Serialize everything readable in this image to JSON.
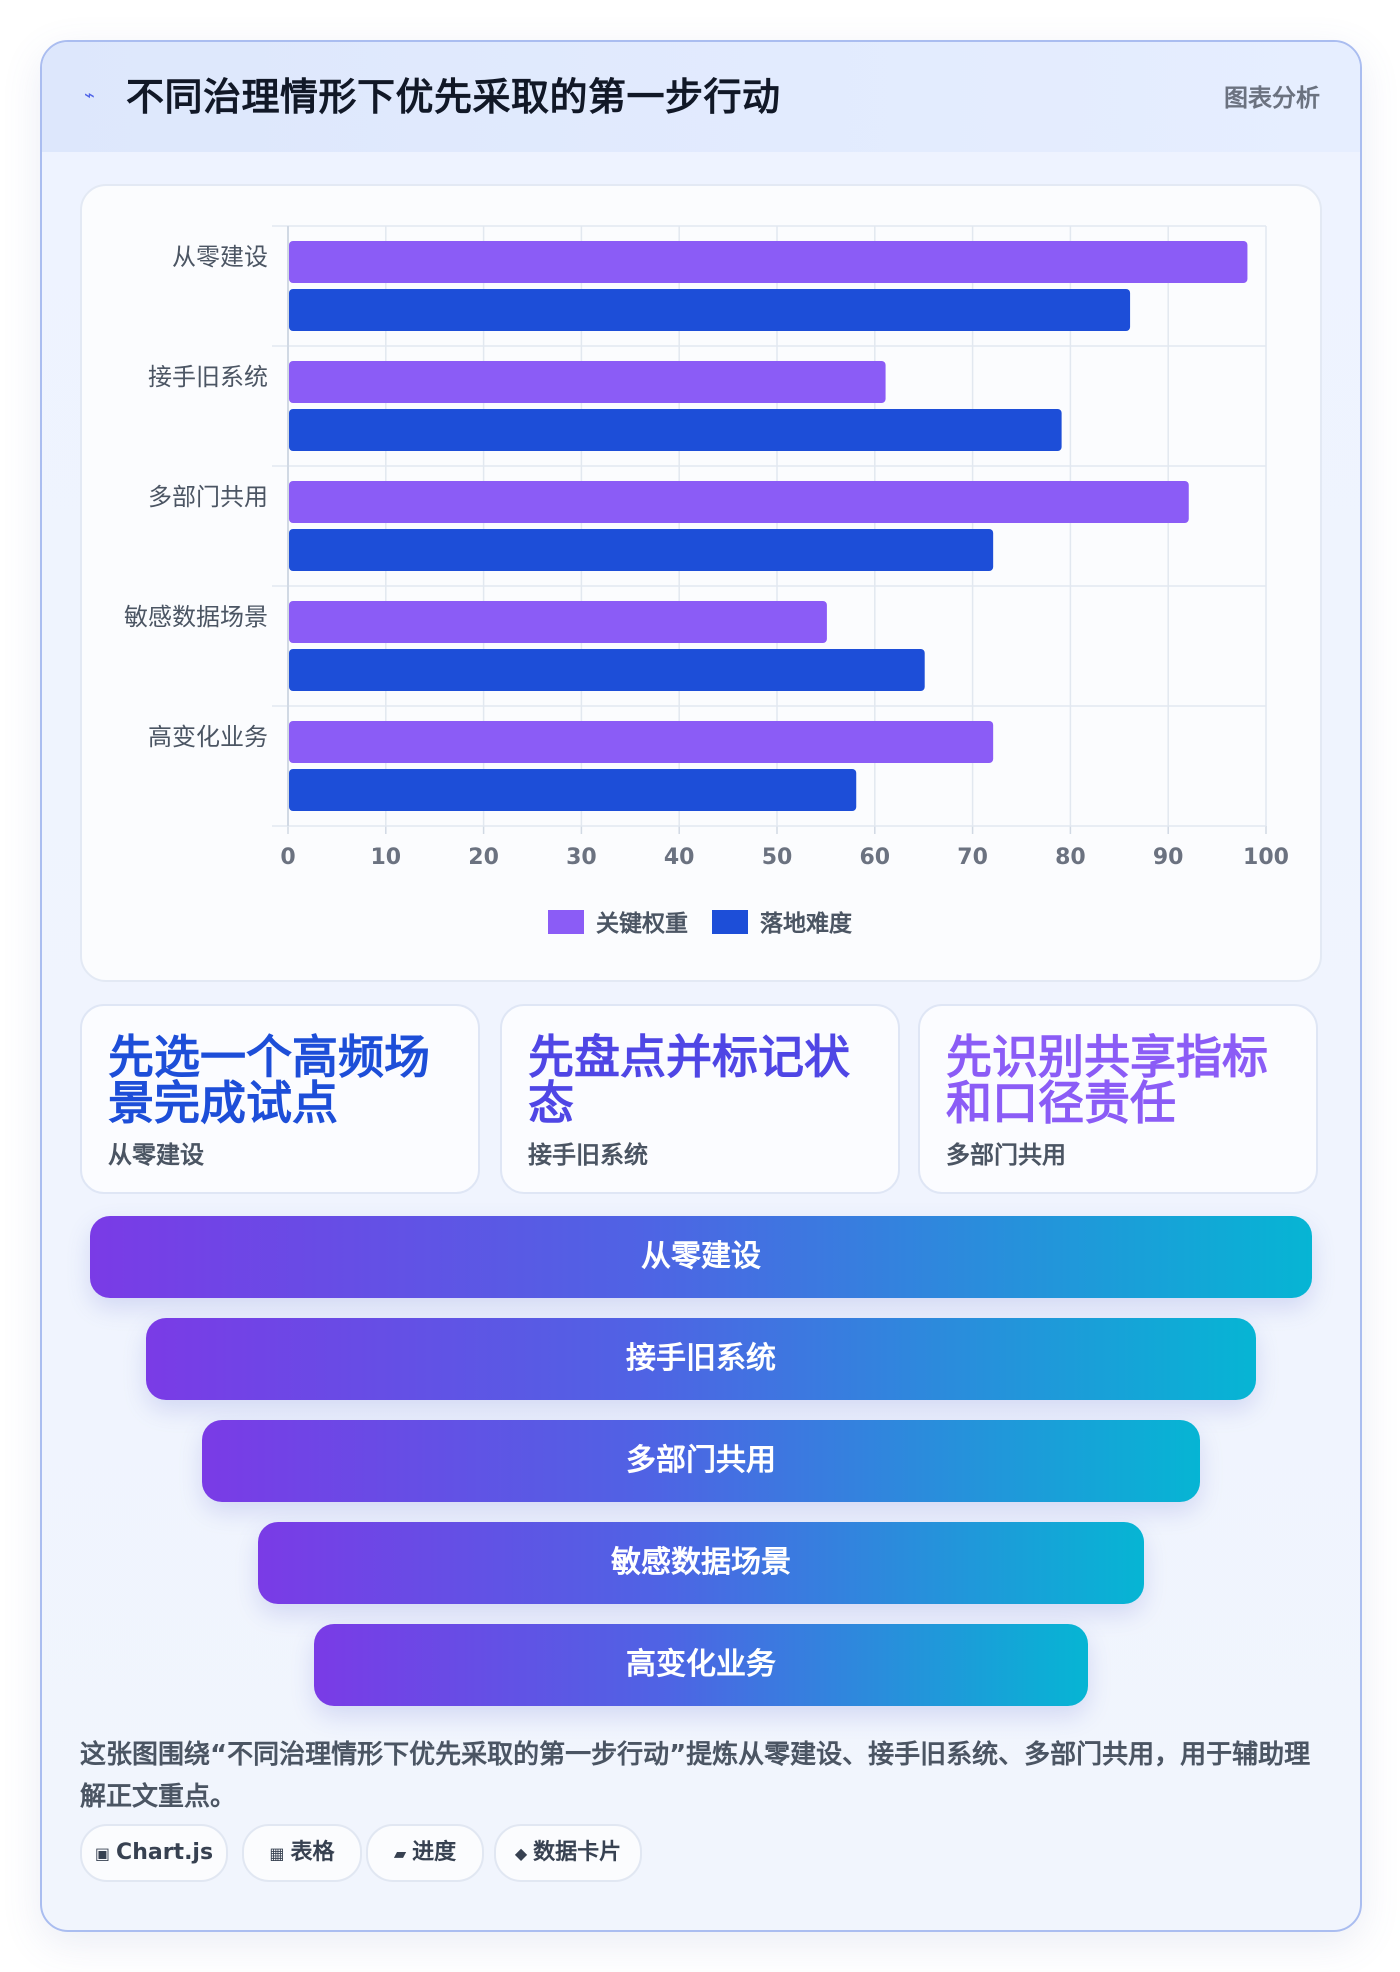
{
  "header": {
    "title": "不同治理情形下优先采取的第一步行动",
    "tag": "图表分析",
    "icon": "bolt-icon"
  },
  "chart_data": {
    "type": "bar",
    "orientation": "horizontal",
    "categories": [
      "从零建设",
      "接手旧系统",
      "多部门共用",
      "敏感数据场景",
      "高变化业务"
    ],
    "series": [
      {
        "name": "关键权重",
        "color": "#8b5cf6",
        "values": [
          98,
          61,
          92,
          55,
          72
        ]
      },
      {
        "name": "落地难度",
        "color": "#1d4ed8",
        "values": [
          86,
          79,
          72,
          65,
          58
        ]
      }
    ],
    "xlim": [
      0,
      100
    ],
    "xticks": [
      "0",
      "10",
      "20",
      "30",
      "40",
      "50",
      "60",
      "70",
      "80",
      "90",
      "100"
    ],
    "grid": true,
    "legend": "bottom"
  },
  "cards": [
    {
      "title": "先选一个高频场景完成试点",
      "subtitle": "从零建设",
      "color": "#1d4ed8"
    },
    {
      "title": "先盘点并标记状态",
      "subtitle": "接手旧系统",
      "color": "#4f46e5"
    },
    {
      "title": "先识别共享指标和口径责任",
      "subtitle": "多部门共用",
      "color": "#8b5cf6"
    }
  ],
  "funnel": [
    "从零建设",
    "接手旧系统",
    "多部门共用",
    "敏感数据场景",
    "高变化业务"
  ],
  "description": "这张图围绕“不同治理情形下优先采取的第一步行动”提炼从零建设、接手旧系统、多部门共用，用于辅助理解正文重点。",
  "chips": [
    {
      "icon": "▣",
      "label": "Chart.js"
    },
    {
      "icon": "▦",
      "label": "表格"
    },
    {
      "icon": "▰",
      "label": "进度"
    },
    {
      "icon": "◆",
      "label": "数据卡片"
    }
  ]
}
